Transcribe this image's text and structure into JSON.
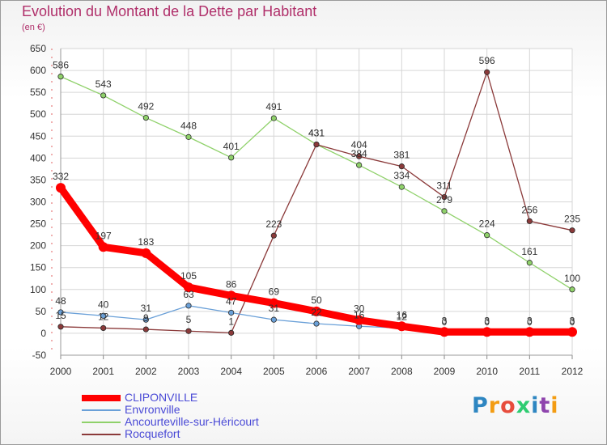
{
  "title": "Evolution du Montant de la Dette par Habitant",
  "subtitle": "(en €)",
  "logo": {
    "text": "Proxiti",
    "colors": [
      "#2e86c1",
      "#f39c12",
      "#e74c3c",
      "#2ecc71",
      "#2e86c1",
      "#8e44ad",
      "#f39c12"
    ]
  },
  "chart_data": {
    "type": "line",
    "x": [
      "2000",
      "2001",
      "2002",
      "2003",
      "2004",
      "2005",
      "2006",
      "2007",
      "2008",
      "2009",
      "2010",
      "2011",
      "2012"
    ],
    "ylim": [
      -50,
      650
    ],
    "yticks": [
      -50,
      0,
      50,
      100,
      150,
      200,
      250,
      300,
      350,
      400,
      450,
      500,
      550,
      600,
      650
    ],
    "grid": true,
    "legend_position": "bottom-left",
    "series": [
      {
        "name": "CLIPONVILLE",
        "color": "#ff0000",
        "emphasis": true,
        "values": [
          332,
          197,
          183,
          105,
          86,
          69,
          50,
          30,
          16,
          3,
          3,
          3,
          3
        ]
      },
      {
        "name": "Envronville",
        "color": "#6aa0d8",
        "values": [
          48,
          40,
          31,
          63,
          47,
          31,
          22,
          16,
          12,
          0,
          0,
          0,
          0
        ]
      },
      {
        "name": "Ancourteville-sur-Héricourt",
        "color": "#8fd16a",
        "values": [
          586,
          543,
          492,
          448,
          401,
          491,
          431,
          384,
          334,
          279,
          224,
          161,
          100
        ]
      },
      {
        "name": "Rocquefort",
        "color": "#8b3a3a",
        "values": [
          15,
          12,
          9,
          5,
          1,
          223,
          431,
          404,
          381,
          311,
          596,
          256,
          235
        ]
      }
    ]
  }
}
